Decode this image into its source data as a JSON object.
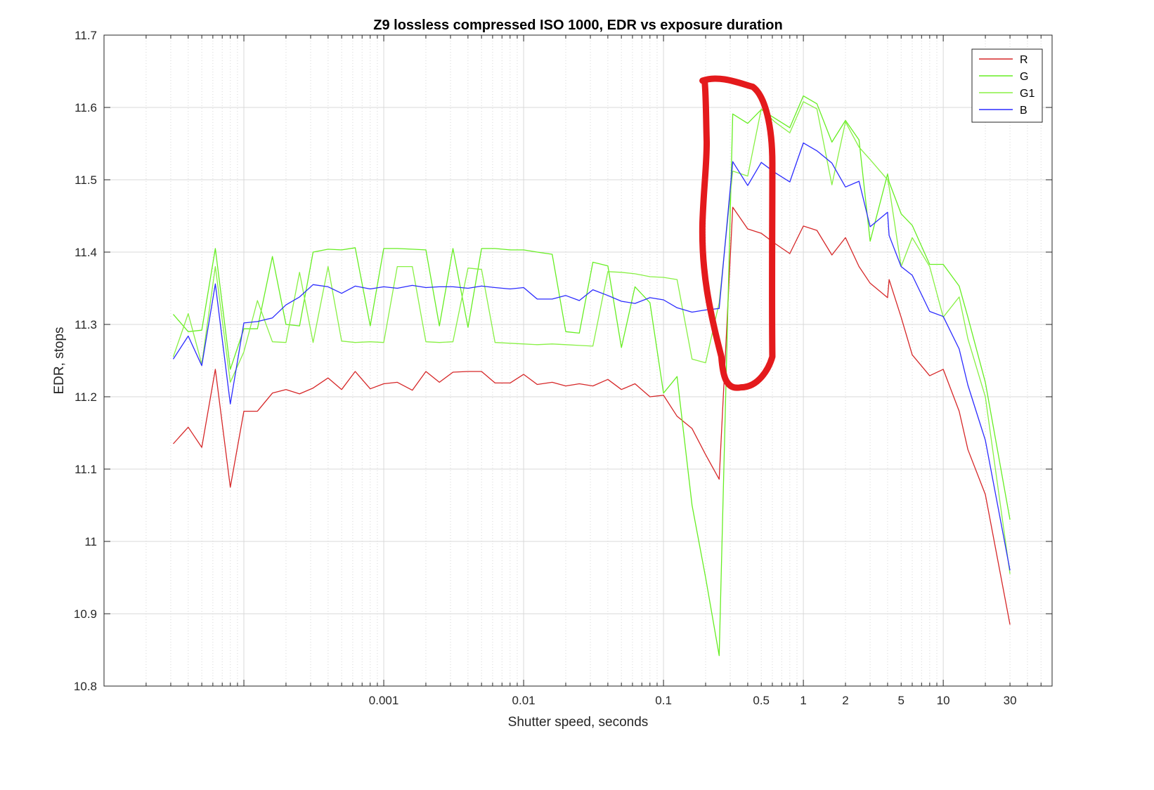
{
  "chart_data": {
    "type": "line",
    "title": "Z9 lossless compressed ISO 1000, EDR vs exposure duration",
    "xlabel": "Shutter speed, seconds",
    "ylabel": "EDR, stops",
    "xscale": "log",
    "xlim": [
      1e-05,
      60
    ],
    "ylim": [
      10.8,
      11.7
    ],
    "grid": true,
    "legend_position": "top-right",
    "x_tick_labels": [
      {
        "value": 0.001,
        "label": "0.001"
      },
      {
        "value": 0.01,
        "label": "0.01"
      },
      {
        "value": 0.1,
        "label": "0.1"
      },
      {
        "value": 0.5,
        "label": "0.5"
      },
      {
        "value": 1,
        "label": "1"
      },
      {
        "value": 2,
        "label": "2"
      },
      {
        "value": 5,
        "label": "5"
      },
      {
        "value": 10,
        "label": "10"
      },
      {
        "value": 30,
        "label": "30"
      }
    ],
    "y_tick_labels": [
      "10.8",
      "10.9",
      "11",
      "11.1",
      "11.2",
      "11.3",
      "11.4",
      "11.5",
      "11.6",
      "11.7"
    ],
    "series": [
      {
        "name": "R",
        "color": "#d62728",
        "x": [
          3.125e-05,
          4e-05,
          5e-05,
          6.25e-05,
          8e-05,
          0.0001,
          0.000125,
          0.00016,
          0.0002,
          0.00025,
          0.0003125,
          0.0004,
          0.0005,
          0.000625,
          0.0008,
          0.001,
          0.00125,
          0.0016,
          0.002,
          0.0025,
          0.003125,
          0.004,
          0.005,
          0.00625,
          0.008,
          0.01,
          0.0125,
          0.016,
          0.02,
          0.025,
          0.03125,
          0.04,
          0.05,
          0.0625,
          0.08,
          0.1,
          0.125,
          0.16,
          0.2,
          0.25,
          0.3125,
          0.4,
          0.5,
          0.625,
          0.8,
          1,
          1.25,
          1.6,
          2,
          2.5,
          3,
          4,
          4.1,
          5,
          6,
          8,
          10,
          13,
          15,
          20,
          30
        ],
        "y": [
          11.135,
          11.158,
          11.13,
          11.238,
          11.075,
          11.18,
          11.18,
          11.205,
          11.21,
          11.204,
          11.212,
          11.226,
          11.21,
          11.235,
          11.211,
          11.218,
          11.22,
          11.209,
          11.235,
          11.22,
          11.234,
          11.235,
          11.235,
          11.219,
          11.219,
          11.231,
          11.217,
          11.22,
          11.215,
          11.218,
          11.215,
          11.224,
          11.21,
          11.218,
          11.2,
          11.202,
          11.173,
          11.156,
          11.12,
          11.086,
          11.462,
          11.432,
          11.426,
          11.412,
          11.398,
          11.436,
          11.43,
          11.396,
          11.42,
          11.38,
          11.357,
          11.337,
          11.362,
          11.31,
          11.258,
          11.229,
          11.238,
          11.18,
          11.127,
          11.065,
          10.885
        ]
      },
      {
        "name": "G",
        "color": "#66ee22",
        "x": [
          3.125e-05,
          4e-05,
          5e-05,
          6.25e-05,
          8e-05,
          0.0001,
          0.000125,
          0.00016,
          0.0002,
          0.00025,
          0.0003125,
          0.0004,
          0.0005,
          0.000625,
          0.0008,
          0.001,
          0.00125,
          0.0016,
          0.002,
          0.0025,
          0.003125,
          0.004,
          0.005,
          0.00625,
          0.008,
          0.01,
          0.0125,
          0.016,
          0.02,
          0.025,
          0.03125,
          0.04,
          0.05,
          0.0625,
          0.08,
          0.1,
          0.125,
          0.16,
          0.2,
          0.25,
          0.3125,
          0.4,
          0.5,
          0.625,
          0.8,
          1,
          1.25,
          1.6,
          2,
          2.5,
          3,
          4,
          4.1,
          5,
          6,
          8,
          10,
          13,
          15,
          20,
          30
        ],
        "y": [
          11.314,
          11.29,
          11.292,
          11.405,
          11.238,
          11.294,
          11.294,
          11.394,
          11.3,
          11.298,
          11.4,
          11.404,
          11.403,
          11.406,
          11.298,
          11.405,
          11.405,
          11.404,
          11.403,
          11.298,
          11.405,
          11.296,
          11.405,
          11.405,
          11.403,
          11.403,
          11.4,
          11.397,
          11.29,
          11.288,
          11.386,
          11.381,
          11.268,
          11.352,
          11.33,
          11.205,
          11.228,
          11.05,
          10.95,
          10.842,
          11.591,
          11.578,
          11.597,
          11.585,
          11.572,
          11.616,
          11.605,
          11.552,
          11.582,
          11.555,
          11.415,
          11.508,
          11.497,
          11.453,
          11.437,
          11.383,
          11.383,
          11.353,
          11.31,
          11.22,
          11.03
        ]
      },
      {
        "name": "G1",
        "color": "#88f044",
        "x": [
          3.125e-05,
          4e-05,
          5e-05,
          6.25e-05,
          8e-05,
          0.0001,
          0.000125,
          0.00016,
          0.0002,
          0.00025,
          0.0003125,
          0.0004,
          0.0005,
          0.000625,
          0.0008,
          0.001,
          0.00125,
          0.0016,
          0.002,
          0.0025,
          0.003125,
          0.004,
          0.005,
          0.00625,
          0.008,
          0.01,
          0.0125,
          0.016,
          0.02,
          0.025,
          0.03125,
          0.04,
          0.05,
          0.0625,
          0.08,
          0.1,
          0.125,
          0.16,
          0.2,
          0.25,
          0.3125,
          0.4,
          0.5,
          0.625,
          0.8,
          1,
          1.25,
          1.6,
          2,
          2.5,
          3,
          4,
          4.1,
          5,
          6,
          8,
          10,
          13,
          15,
          20,
          30
        ],
        "y": [
          11.255,
          11.315,
          11.245,
          11.38,
          11.22,
          11.262,
          11.333,
          11.276,
          11.275,
          11.372,
          11.275,
          11.38,
          11.277,
          11.275,
          11.276,
          11.275,
          11.38,
          11.38,
          11.276,
          11.275,
          11.276,
          11.378,
          11.376,
          11.275,
          11.274,
          11.273,
          11.272,
          11.273,
          11.272,
          11.271,
          11.27,
          11.373,
          11.372,
          11.37,
          11.366,
          11.365,
          11.362,
          11.252,
          11.247,
          11.33,
          11.512,
          11.505,
          11.598,
          11.58,
          11.565,
          11.608,
          11.598,
          11.493,
          11.58,
          11.545,
          11.528,
          11.5,
          11.49,
          11.38,
          11.42,
          11.38,
          11.31,
          11.338,
          11.28,
          11.2,
          10.955
        ]
      },
      {
        "name": "B",
        "color": "#2b2bff",
        "x": [
          3.125e-05,
          4e-05,
          5e-05,
          6.25e-05,
          8e-05,
          0.0001,
          0.000125,
          0.00016,
          0.0002,
          0.00025,
          0.0003125,
          0.0004,
          0.0005,
          0.000625,
          0.0008,
          0.001,
          0.00125,
          0.0016,
          0.002,
          0.0025,
          0.003125,
          0.004,
          0.005,
          0.00625,
          0.008,
          0.01,
          0.0125,
          0.016,
          0.02,
          0.025,
          0.03125,
          0.04,
          0.05,
          0.0625,
          0.08,
          0.1,
          0.125,
          0.16,
          0.2,
          0.25,
          0.3125,
          0.4,
          0.5,
          0.625,
          0.8,
          1,
          1.25,
          1.6,
          2,
          2.5,
          3,
          4,
          4.1,
          5,
          6,
          8,
          10,
          13,
          15,
          20,
          30
        ],
        "y": [
          11.252,
          11.284,
          11.243,
          11.356,
          11.19,
          11.302,
          11.304,
          11.309,
          11.327,
          11.338,
          11.355,
          11.352,
          11.343,
          11.353,
          11.349,
          11.352,
          11.35,
          11.354,
          11.351,
          11.352,
          11.352,
          11.35,
          11.353,
          11.351,
          11.349,
          11.351,
          11.335,
          11.335,
          11.34,
          11.333,
          11.348,
          11.34,
          11.332,
          11.329,
          11.337,
          11.334,
          11.323,
          11.317,
          11.32,
          11.322,
          11.525,
          11.492,
          11.524,
          11.51,
          11.497,
          11.551,
          11.54,
          11.523,
          11.49,
          11.498,
          11.435,
          11.455,
          11.423,
          11.38,
          11.368,
          11.318,
          11.311,
          11.266,
          11.216,
          11.14,
          10.96
        ]
      }
    ],
    "annotations": [
      {
        "type": "freehand-outline",
        "color": "#e41a1c",
        "x_range": [
          0.19,
          0.6
        ],
        "y_range": [
          11.213,
          11.637
        ]
      }
    ]
  }
}
